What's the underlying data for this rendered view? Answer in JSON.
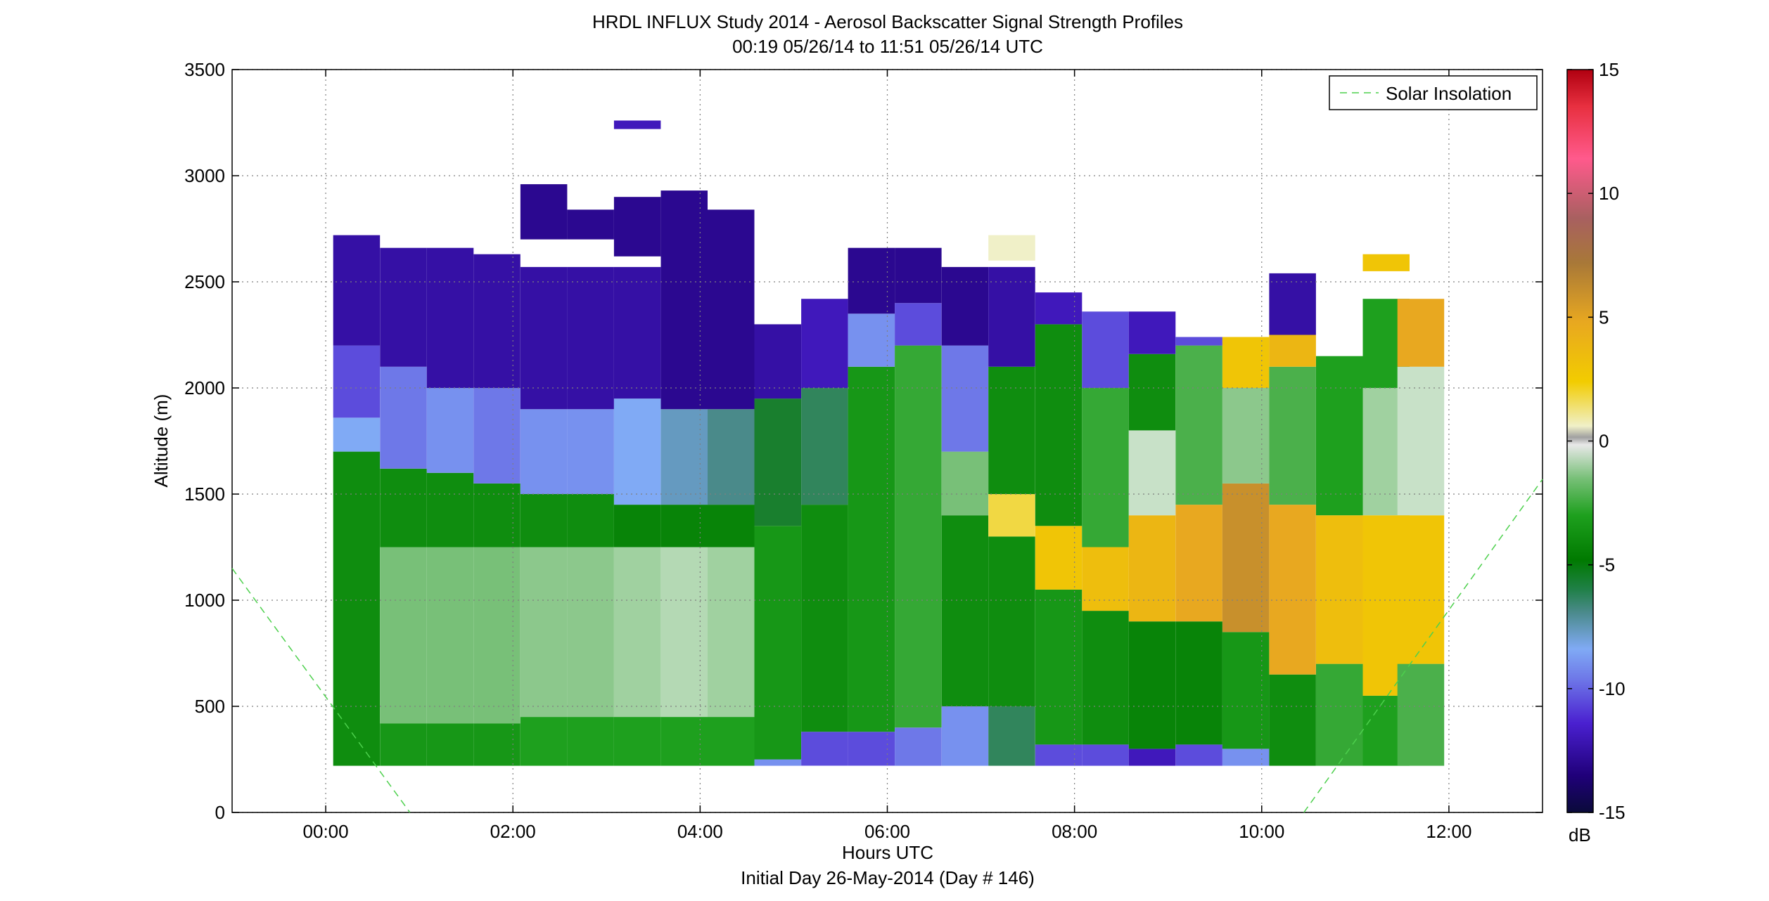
{
  "chart_data": {
    "type": "heatmap",
    "title": "HRDL INFLUX Study 2014 - Aerosol Backscatter Signal Strength Profiles",
    "subtitle": "00:19 05/26/14 to 11:51 05/26/14  UTC",
    "xlabel": "Hours UTC",
    "footer": "Initial Day 26-May-2014 (Day # 146)",
    "ylabel": "Altitude (m)",
    "xlim": [
      -1.0,
      13.0
    ],
    "ylim": [
      0,
      3500
    ],
    "x_ticks": [
      0,
      2,
      4,
      6,
      8,
      10,
      12
    ],
    "x_tick_labels": [
      "00:00",
      "02:00",
      "04:00",
      "06:00",
      "08:00",
      "10:00",
      "12:00"
    ],
    "y_ticks": [
      0,
      500,
      1000,
      1500,
      2000,
      2500,
      3000,
      3500
    ],
    "y_tick_labels": [
      "0",
      "500",
      "1000",
      "1500",
      "2000",
      "2500",
      "3000",
      "3500"
    ],
    "grid": true,
    "legend": {
      "label": "Solar Insolation",
      "position": "top-right",
      "color": "#4dd04d"
    },
    "colorbar": {
      "label": "dB",
      "range": [
        -15,
        15
      ],
      "ticks": [
        -15,
        -10,
        -5,
        0,
        5,
        10,
        15
      ],
      "tick_labels": [
        "-15",
        "-10",
        "-5",
        "0",
        "5",
        "10",
        "15"
      ]
    },
    "column_width_hours": 0.5,
    "profiles": [
      {
        "time": 0.33,
        "top": 2720,
        "layers": [
          [
            220,
            1700,
            -6
          ],
          [
            1700,
            1860,
            -9.5
          ],
          [
            1860,
            2200,
            -11
          ],
          [
            2200,
            2720,
            -12.5
          ]
        ]
      },
      {
        "time": 0.83,
        "top": 2660,
        "layers": [
          [
            220,
            420,
            -5.5
          ],
          [
            420,
            1250,
            -3
          ],
          [
            1250,
            1620,
            -6
          ],
          [
            1620,
            2100,
            -10.5
          ],
          [
            2100,
            2660,
            -12.5
          ]
        ]
      },
      {
        "time": 1.33,
        "top": 2660,
        "layers": [
          [
            220,
            420,
            -5.5
          ],
          [
            420,
            1250,
            -3
          ],
          [
            1250,
            1600,
            -6
          ],
          [
            1600,
            2000,
            -10
          ],
          [
            2000,
            2660,
            -12.5
          ]
        ]
      },
      {
        "time": 1.83,
        "top": 2630,
        "layers": [
          [
            220,
            420,
            -5.5
          ],
          [
            420,
            1250,
            -3
          ],
          [
            1250,
            1550,
            -6
          ],
          [
            1550,
            2000,
            -10.5
          ],
          [
            2000,
            2630,
            -12.5
          ]
        ]
      },
      {
        "time": 2.33,
        "top": 2570,
        "layers": [
          [
            220,
            450,
            -5
          ],
          [
            450,
            1250,
            -2.5
          ],
          [
            1250,
            1500,
            -6
          ],
          [
            1500,
            1900,
            -10
          ],
          [
            1900,
            2570,
            -12.5
          ],
          [
            2700,
            2960,
            -13
          ]
        ]
      },
      {
        "time": 2.83,
        "top": 2570,
        "layers": [
          [
            220,
            450,
            -5
          ],
          [
            450,
            1250,
            -2.5
          ],
          [
            1250,
            1500,
            -6
          ],
          [
            1500,
            1900,
            -10
          ],
          [
            1900,
            2570,
            -12.5
          ],
          [
            2700,
            2840,
            -13
          ]
        ]
      },
      {
        "time": 3.33,
        "top": 2570,
        "layers": [
          [
            220,
            450,
            -5
          ],
          [
            450,
            1250,
            -2
          ],
          [
            1250,
            1450,
            -6.5
          ],
          [
            1450,
            1950,
            -9.5
          ],
          [
            1950,
            2570,
            -12.5
          ],
          [
            2620,
            2900,
            -13
          ],
          [
            3220,
            3260,
            -12
          ]
        ]
      },
      {
        "time": 3.83,
        "top": 2930,
        "layers": [
          [
            220,
            450,
            -5
          ],
          [
            450,
            1250,
            -1.5
          ],
          [
            1250,
            1450,
            -6.5
          ],
          [
            1450,
            1900,
            -9
          ],
          [
            1900,
            2930,
            -13
          ]
        ]
      },
      {
        "time": 4.33,
        "top": 2840,
        "layers": [
          [
            220,
            450,
            -5
          ],
          [
            450,
            1250,
            -2
          ],
          [
            1250,
            1450,
            -6.5
          ],
          [
            1450,
            1900,
            -8.5
          ],
          [
            1900,
            2840,
            -13
          ]
        ]
      },
      {
        "time": 4.83,
        "top": 2300,
        "layers": [
          [
            220,
            250,
            -10
          ],
          [
            250,
            1350,
            -5.5
          ],
          [
            1350,
            1950,
            -7.5
          ],
          [
            1950,
            2300,
            -12.5
          ]
        ]
      },
      {
        "time": 5.33,
        "top": 2420,
        "layers": [
          [
            220,
            380,
            -11
          ],
          [
            380,
            1450,
            -6
          ],
          [
            1450,
            2000,
            -8
          ],
          [
            2000,
            2420,
            -12
          ]
        ]
      },
      {
        "time": 5.83,
        "top": 2660,
        "layers": [
          [
            220,
            380,
            -11
          ],
          [
            380,
            2100,
            -5.5
          ],
          [
            2100,
            2350,
            -10
          ],
          [
            2350,
            2660,
            -13
          ]
        ]
      },
      {
        "time": 6.33,
        "top": 2660,
        "layers": [
          [
            220,
            400,
            -10.5
          ],
          [
            400,
            2200,
            -4.5
          ],
          [
            2200,
            2400,
            -11
          ],
          [
            2400,
            2660,
            -13
          ]
        ]
      },
      {
        "time": 6.83,
        "top": 2570,
        "layers": [
          [
            220,
            500,
            -10
          ],
          [
            500,
            1400,
            -6
          ],
          [
            1400,
            1700,
            -3
          ],
          [
            1700,
            2200,
            -10.5
          ],
          [
            2200,
            2570,
            -13
          ]
        ]
      },
      {
        "time": 7.33,
        "top": 2570,
        "layers": [
          [
            220,
            500,
            -8
          ],
          [
            500,
            1300,
            -6
          ],
          [
            1300,
            1500,
            2
          ],
          [
            1500,
            2100,
            -6
          ],
          [
            2100,
            2570,
            -12.5
          ],
          [
            2600,
            2720,
            1
          ]
        ]
      },
      {
        "time": 7.83,
        "top": 2450,
        "layers": [
          [
            220,
            320,
            -11
          ],
          [
            320,
            1050,
            -5.5
          ],
          [
            1050,
            1350,
            3
          ],
          [
            1350,
            2300,
            -6
          ],
          [
            2300,
            2450,
            -12
          ]
        ]
      },
      {
        "time": 8.33,
        "top": 2360,
        "layers": [
          [
            220,
            320,
            -11
          ],
          [
            320,
            950,
            -6
          ],
          [
            950,
            1250,
            3.5
          ],
          [
            1250,
            2000,
            -4.5
          ],
          [
            2000,
            2360,
            -11
          ]
        ]
      },
      {
        "time": 8.83,
        "top": 2360,
        "layers": [
          [
            220,
            300,
            -12
          ],
          [
            300,
            900,
            -6.5
          ],
          [
            900,
            1400,
            4
          ],
          [
            1400,
            1800,
            -1
          ],
          [
            1800,
            2160,
            -6
          ],
          [
            2160,
            2360,
            -12
          ]
        ]
      },
      {
        "time": 9.33,
        "top": 2240,
        "layers": [
          [
            220,
            320,
            -11
          ],
          [
            320,
            900,
            -6.5
          ],
          [
            900,
            1450,
            5
          ],
          [
            1450,
            2200,
            -4
          ],
          [
            2200,
            2240,
            -11
          ]
        ]
      },
      {
        "time": 9.83,
        "top": 2240,
        "layers": [
          [
            220,
            300,
            -10
          ],
          [
            300,
            850,
            -5.5
          ],
          [
            850,
            1550,
            6
          ],
          [
            1550,
            2000,
            -2.5
          ],
          [
            2000,
            2240,
            3
          ]
        ]
      },
      {
        "time": 10.33,
        "top": 2540,
        "layers": [
          [
            220,
            650,
            -6
          ],
          [
            650,
            1450,
            5
          ],
          [
            1450,
            2100,
            -4
          ],
          [
            2100,
            2250,
            4
          ],
          [
            2250,
            2540,
            -12.5
          ]
        ]
      },
      {
        "time": 10.83,
        "top": 2150,
        "layers": [
          [
            220,
            700,
            -4.5
          ],
          [
            700,
            1400,
            3.5
          ],
          [
            1400,
            2150,
            -5
          ]
        ]
      },
      {
        "time": 11.33,
        "top": 2420,
        "layers": [
          [
            220,
            550,
            -5
          ],
          [
            550,
            1400,
            3
          ],
          [
            1400,
            2000,
            -2
          ],
          [
            2000,
            2420,
            -5
          ],
          [
            2550,
            2630,
            3
          ]
        ]
      },
      {
        "time": 11.7,
        "top": 2420,
        "layers": [
          [
            220,
            700,
            -4
          ],
          [
            700,
            1400,
            3
          ],
          [
            1400,
            2100,
            -1
          ],
          [
            2100,
            2420,
            5
          ]
        ]
      }
    ],
    "series": [
      {
        "name": "Solar Insolation",
        "x": [
          -1.0,
          0.9
        ],
        "y": [
          1150,
          0
        ]
      },
      {
        "name": "Solar Insolation",
        "x": [
          10.45,
          13.0
        ],
        "y": [
          0,
          1570
        ]
      }
    ]
  }
}
